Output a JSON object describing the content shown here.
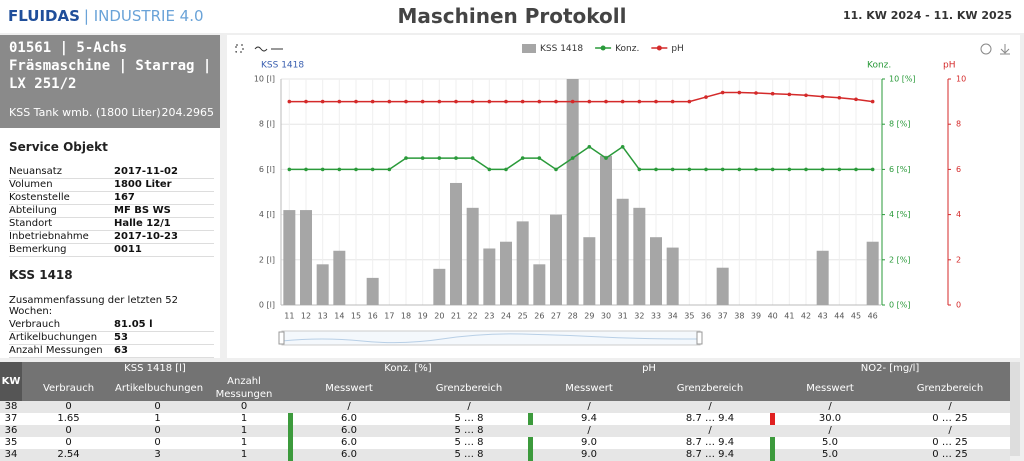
{
  "header": {
    "logo_name": "FLUIDAS",
    "logo_suffix": "INDUSTRIE 4.0",
    "title": "Maschinen Protokoll",
    "period": "11. KW 2024 - 11. KW 2025"
  },
  "machine": {
    "title": "01561 | 5-Achs Fräsmaschine | Starrag | LX 251/2",
    "tank": "KSS Tank wmb. (1800 Liter)",
    "tank_value": "204.2965"
  },
  "service": {
    "title": "Service Objekt",
    "rows": [
      [
        "Neuansatz",
        "2017-11-02"
      ],
      [
        "Volumen",
        "1800 Liter"
      ],
      [
        "Kostenstelle",
        "167"
      ],
      [
        "Abteilung",
        "MF BS WS"
      ],
      [
        "Standort",
        "Halle 12/1"
      ],
      [
        "Inbetriebnahme",
        "2017-10-23"
      ],
      [
        "Bemerkung",
        "0011"
      ]
    ]
  },
  "summary": {
    "title": "KSS 1418",
    "subtitle": "Zusammenfassung der letzten 52 Wochen:",
    "rows": [
      [
        "Verbrauch",
        "81.05 l"
      ],
      [
        "Artikelbuchungen",
        "53"
      ],
      [
        "Anzahl Messungen",
        "63"
      ]
    ]
  },
  "chart_data": {
    "type": "combo",
    "categories": [
      "11",
      "12",
      "13",
      "14",
      "15",
      "16",
      "17",
      "18",
      "19",
      "20",
      "21",
      "22",
      "23",
      "24",
      "25",
      "26",
      "27",
      "28",
      "29",
      "30",
      "31",
      "32",
      "33",
      "34",
      "35",
      "36",
      "37",
      "38",
      "39",
      "40",
      "41",
      "42",
      "43",
      "44",
      "45",
      "46"
    ],
    "series": [
      {
        "name": "KSS 1418",
        "type": "bar",
        "axis": "y",
        "color": "#a6a6a6",
        "values": [
          4.2,
          4.2,
          1.8,
          2.4,
          0,
          1.2,
          0,
          0,
          0,
          1.6,
          5.4,
          4.3,
          2.5,
          2.8,
          3.7,
          1.8,
          4.0,
          10,
          3.0,
          6.6,
          4.7,
          4.3,
          3.0,
          2.54,
          0,
          0,
          1.65,
          0,
          0,
          0,
          0,
          0,
          2.4,
          0,
          0,
          2.8
        ]
      },
      {
        "name": "Konz.",
        "type": "line",
        "axis": "y2",
        "color": "#2a9a3a",
        "values": [
          6,
          6,
          6,
          6,
          6,
          6,
          6,
          6.5,
          6.5,
          6.5,
          6.5,
          6.5,
          6,
          6,
          6.5,
          6.5,
          6,
          6.5,
          7,
          6.5,
          7,
          6,
          6,
          6,
          6,
          6,
          6,
          6,
          6,
          6,
          6,
          6,
          6,
          6,
          6,
          6
        ]
      },
      {
        "name": "pH",
        "type": "line",
        "axis": "y3",
        "color": "#d42a2a",
        "values": [
          9,
          9,
          9,
          9,
          9,
          9,
          9,
          9,
          9,
          9,
          9,
          9,
          9,
          9,
          9,
          9,
          9,
          9,
          9,
          9,
          9,
          9,
          9,
          9,
          9,
          9.2,
          9.4,
          9.4,
          9.38,
          9.35,
          9.32,
          9.28,
          9.22,
          9.17,
          9.1,
          9.0
        ]
      }
    ],
    "y_title": "KSS 1418",
    "y2_title": "Konz.",
    "y3_title": "pH",
    "ylim": [
      0,
      10
    ],
    "yticks": [
      {
        "value": 0,
        "label": "0 [l]"
      },
      {
        "value": 2,
        "label": "2 [l]"
      },
      {
        "value": 4,
        "label": "4 [l]"
      },
      {
        "value": 6,
        "label": "6 [l]"
      },
      {
        "value": 8,
        "label": "8 [l]"
      },
      {
        "value": 10,
        "label": "10 [l]"
      }
    ],
    "y2lim": [
      0,
      10
    ],
    "y2ticks": [
      {
        "value": 0,
        "label": "0 [%]"
      },
      {
        "value": 2,
        "label": "2 [%]"
      },
      {
        "value": 4,
        "label": "4 [%]"
      },
      {
        "value": 6,
        "label": "6 [%]"
      },
      {
        "value": 8,
        "label": "8 [%]"
      },
      {
        "value": 10,
        "label": "10 [%]"
      }
    ],
    "y3lim": [
      0,
      10
    ],
    "y3ticks": [
      0,
      2,
      4,
      6,
      8,
      10
    ],
    "grid": true
  },
  "table": {
    "groups": [
      "KW",
      "KSS 1418 [l]",
      "Konz. [%]",
      "pH",
      "NO2- [mg/l]"
    ],
    "columns": [
      "Verbrauch",
      "Artikelbuchungen",
      "Anzahl Messungen",
      "Messwert",
      "Grenzbereich",
      "Messwert",
      "Grenzbereich",
      "Messwert",
      "Grenzbereich"
    ],
    "rows": [
      {
        "cells": [
          "38",
          "0",
          "0",
          "0",
          "/",
          "/",
          "/",
          "/",
          "/",
          "/"
        ],
        "flag_colors": [
          null,
          null,
          null
        ]
      },
      {
        "cells": [
          "37",
          "1.65",
          "1",
          "1",
          "6.0",
          "5 … 8",
          "9.4",
          "8.7 … 9.4",
          "30.0",
          "0 … 25"
        ],
        "flag_colors": [
          "#3c9a3c",
          "#3c9a3c",
          "#e02020"
        ]
      },
      {
        "cells": [
          "36",
          "0",
          "0",
          "1",
          "6.0",
          "5 … 8",
          "/",
          "/",
          "/",
          "/"
        ],
        "flag_colors": [
          "#3c9a3c",
          null,
          null
        ]
      },
      {
        "cells": [
          "35",
          "0",
          "0",
          "1",
          "6.0",
          "5 … 8",
          "9.0",
          "8.7 … 9.4",
          "5.0",
          "0 … 25"
        ],
        "flag_colors": [
          "#3c9a3c",
          "#3c9a3c",
          "#3c9a3c"
        ]
      },
      {
        "cells": [
          "34",
          "2.54",
          "3",
          "1",
          "6.0",
          "5 … 8",
          "9.0",
          "8.7 … 9.4",
          "5.0",
          "0 … 25"
        ],
        "flag_colors": [
          "#3c9a3c",
          "#3c9a3c",
          "#3c9a3c"
        ]
      }
    ]
  }
}
